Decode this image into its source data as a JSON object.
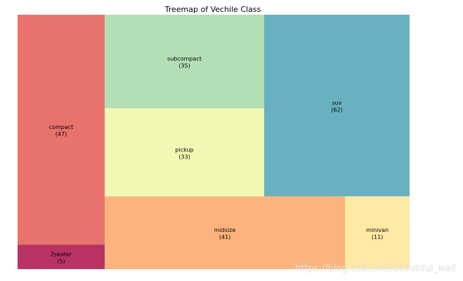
{
  "chart_data": {
    "type": "treemap",
    "title": "Treemap of Vechile Class",
    "items": [
      {
        "label": "compact",
        "value": 47,
        "color": "#e8736c"
      },
      {
        "label": "2seater",
        "value": 5,
        "color": "#b83363"
      },
      {
        "label": "subcompact",
        "value": 35,
        "color": "#b3dfb5"
      },
      {
        "label": "pickup",
        "value": 33,
        "color": "#f1f8b3"
      },
      {
        "label": "suv",
        "value": 62,
        "color": "#69b1c0"
      },
      {
        "label": "midsize",
        "value": 41,
        "color": "#fdb47c"
      },
      {
        "label": "minivan",
        "value": 11,
        "color": "#fee9a5"
      }
    ]
  },
  "watermark": "https://blog.csdn.net/beautiful_wall"
}
